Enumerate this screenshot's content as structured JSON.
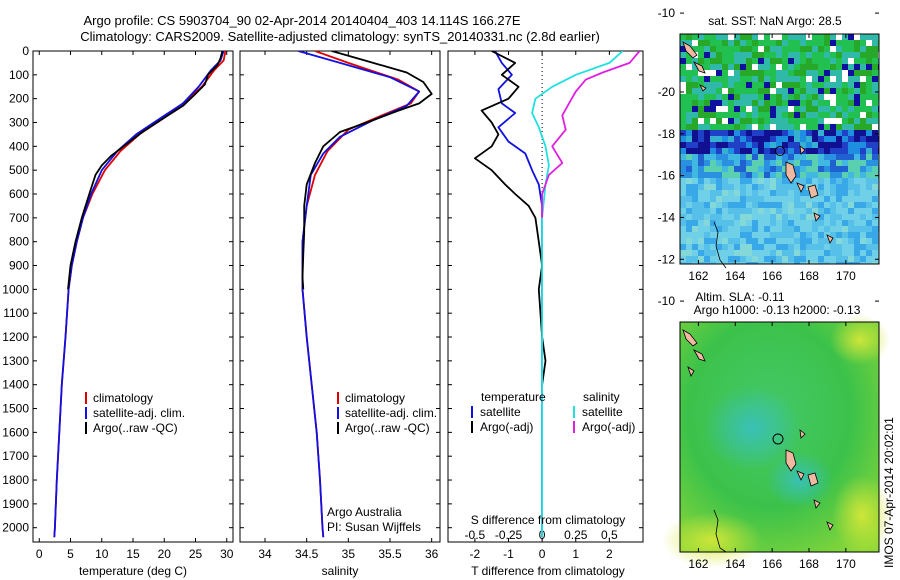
{
  "title_line1": "Argo profile: CS 5903704_90 02-Apr-2014 20140404_403 14.114S 166.27E",
  "title_line2": "Climatology: CARS2009. Satellite-adjusted climatology: synTS_20140331.nc (2.8d earlier)",
  "credits": {
    "line1": "Argo Australia",
    "line2": "PI: Susan Wijffels"
  },
  "timestamp": "IMOS 07-Apr-2014 20:02:01",
  "colors": {
    "clim": "#e00000",
    "sat": "#1010e0",
    "argo": "#000000",
    "sal_sat": "#22e0e0",
    "sal_argo": "#e020e0"
  },
  "chart_data": [
    {
      "type": "line",
      "name": "temperature-profile",
      "xlabel": "temperature (deg C)",
      "ylabel": "depth",
      "xlim": [
        -1,
        31
      ],
      "ylim": [
        2060,
        0
      ],
      "xticks": [
        0,
        5,
        10,
        15,
        20,
        25,
        30
      ],
      "yticks": [
        0,
        100,
        200,
        300,
        400,
        500,
        600,
        700,
        800,
        900,
        1000,
        1100,
        1200,
        1300,
        1400,
        1500,
        1600,
        1700,
        1800,
        1900,
        2000
      ],
      "legend": [
        "climatology",
        "satellite-adj. clim.",
        "Argo(..raw -QC)"
      ],
      "series": [
        {
          "name": "climatology",
          "color": "#e00000",
          "points": [
            [
              29.8,
              0
            ],
            [
              29.5,
              40
            ],
            [
              28,
              80
            ],
            [
              26,
              150
            ],
            [
              23,
              220
            ],
            [
              20,
              280
            ],
            [
              16,
              350
            ],
            [
              13,
              420
            ],
            [
              10.5,
              500
            ],
            [
              8.5,
              600
            ],
            [
              7,
              700
            ],
            [
              6,
              800
            ],
            [
              5.2,
              900
            ],
            [
              4.7,
              1000
            ],
            [
              4.2,
              1200
            ],
            [
              3.6,
              1400
            ],
            [
              3.2,
              1600
            ],
            [
              2.8,
              1800
            ],
            [
              2.5,
              2000
            ],
            [
              2.4,
              2040
            ]
          ]
        },
        {
          "name": "satellite-adj. clim.",
          "color": "#1010e0",
          "points": [
            [
              29.5,
              0
            ],
            [
              29,
              40
            ],
            [
              27.5,
              80
            ],
            [
              25.5,
              150
            ],
            [
              23,
              220
            ],
            [
              19.5,
              280
            ],
            [
              15.5,
              350
            ],
            [
              12.5,
              420
            ],
            [
              10,
              500
            ],
            [
              8.3,
              600
            ],
            [
              7,
              700
            ],
            [
              6,
              800
            ],
            [
              5.2,
              900
            ],
            [
              4.7,
              1000
            ],
            [
              4.2,
              1200
            ],
            [
              3.6,
              1400
            ],
            [
              3.2,
              1600
            ],
            [
              2.8,
              1800
            ],
            [
              2.5,
              2000
            ],
            [
              2.4,
              2040
            ]
          ]
        },
        {
          "name": "Argo(..raw -QC)",
          "color": "#000000",
          "points": [
            [
              29.3,
              0
            ],
            [
              29,
              30
            ],
            [
              28.5,
              60
            ],
            [
              27,
              100
            ],
            [
              26.5,
              140
            ],
            [
              25,
              180
            ],
            [
              23,
              230
            ],
            [
              20,
              280
            ],
            [
              16.5,
              340
            ],
            [
              13.5,
              400
            ],
            [
              11.5,
              440
            ],
            [
              10,
              480
            ],
            [
              9,
              520
            ],
            [
              8,
              600
            ],
            [
              6.8,
              700
            ],
            [
              5.8,
              800
            ],
            [
              5,
              900
            ],
            [
              4.6,
              1000
            ]
          ]
        }
      ]
    },
    {
      "type": "line",
      "name": "salinity-profile",
      "xlabel": "salinity",
      "xlim": [
        33.7,
        36.1
      ],
      "ylim": [
        2060,
        0
      ],
      "xticks": [
        34,
        34.5,
        35,
        35.5,
        36
      ],
      "legend": [
        "climatology",
        "satellite-adj. clim.",
        "Argo(..raw -QC)"
      ],
      "series": [
        {
          "name": "climatology",
          "color": "#e00000",
          "points": [
            [
              34.6,
              0
            ],
            [
              35,
              50
            ],
            [
              35.6,
              120
            ],
            [
              35.85,
              170
            ],
            [
              35.75,
              220
            ],
            [
              35.4,
              270
            ],
            [
              35,
              330
            ],
            [
              34.75,
              420
            ],
            [
              34.6,
              520
            ],
            [
              34.5,
              650
            ],
            [
              34.45,
              800
            ],
            [
              34.45,
              1000
            ],
            [
              34.5,
              1200
            ],
            [
              34.56,
              1400
            ],
            [
              34.62,
              1600
            ],
            [
              34.66,
              1800
            ],
            [
              34.69,
              2000
            ],
            [
              34.7,
              2040
            ]
          ]
        },
        {
          "name": "satellite-adj. clim.",
          "color": "#1010e0",
          "points": [
            [
              34.4,
              0
            ],
            [
              34.9,
              50
            ],
            [
              35.5,
              110
            ],
            [
              35.85,
              170
            ],
            [
              35.7,
              230
            ],
            [
              35.3,
              290
            ],
            [
              34.9,
              360
            ],
            [
              34.7,
              430
            ],
            [
              34.55,
              520
            ],
            [
              34.5,
              650
            ],
            [
              34.45,
              800
            ],
            [
              34.45,
              1000
            ],
            [
              34.5,
              1200
            ],
            [
              34.56,
              1400
            ],
            [
              34.62,
              1600
            ],
            [
              34.66,
              1800
            ],
            [
              34.69,
              2000
            ],
            [
              34.7,
              2040
            ]
          ]
        },
        {
          "name": "Argo(..raw -QC)",
          "color": "#000000",
          "points": [
            [
              34.8,
              0
            ],
            [
              35.2,
              40
            ],
            [
              35.7,
              90
            ],
            [
              35.9,
              130
            ],
            [
              36,
              180
            ],
            [
              35.85,
              220
            ],
            [
              35.6,
              250
            ],
            [
              35.3,
              290
            ],
            [
              34.9,
              340
            ],
            [
              34.7,
              400
            ],
            [
              34.6,
              470
            ],
            [
              34.5,
              560
            ],
            [
              34.47,
              650
            ],
            [
              34.47,
              760
            ],
            [
              34.46,
              850
            ],
            [
              34.45,
              950
            ],
            [
              34.46,
              1000
            ]
          ]
        }
      ]
    },
    {
      "type": "line",
      "name": "difference-profile",
      "xlabel_top": "S difference from climatology",
      "xlabel": "T difference from climatology",
      "xticks_T": [
        -2,
        -1,
        0,
        1,
        2
      ],
      "xticks_S": [
        "-0.5",
        "-0.25",
        "0",
        "0.25",
        "0.5"
      ],
      "xlim": [
        -2.8,
        3.0
      ],
      "ylim": [
        2060,
        0
      ],
      "legend_left_title": "temperature",
      "legend_right_title": "salinity",
      "legend": [
        "satellite",
        "Argo(-adj)",
        "satellite",
        "Argo(-adj)"
      ],
      "series": [
        {
          "name": "temperature satellite",
          "color": "#1010e0",
          "points": [
            [
              -1.4,
              0
            ],
            [
              -1.2,
              50
            ],
            [
              -0.9,
              100
            ],
            [
              -1.3,
              160
            ],
            [
              -1.2,
              220
            ],
            [
              -0.8,
              260
            ],
            [
              -1.3,
              320
            ],
            [
              -1.0,
              380
            ],
            [
              -0.5,
              430
            ],
            [
              -0.3,
              500
            ],
            [
              -0.1,
              560
            ],
            [
              0,
              650
            ],
            [
              0,
              800
            ],
            [
              0,
              1000
            ],
            [
              0,
              1400
            ],
            [
              0,
              1800
            ],
            [
              0,
              2040
            ]
          ]
        },
        {
          "name": "temperature Argo(-adj)",
          "color": "#000000",
          "points": [
            [
              -1.5,
              0
            ],
            [
              -0.8,
              50
            ],
            [
              -1.2,
              100
            ],
            [
              -0.7,
              150
            ],
            [
              -1.0,
              200
            ],
            [
              -1.8,
              250
            ],
            [
              -1.5,
              300
            ],
            [
              -1.3,
              350
            ],
            [
              -1.5,
              400
            ],
            [
              -2.0,
              450
            ],
            [
              -1.5,
              500
            ],
            [
              -1.1,
              560
            ],
            [
              -0.8,
              600
            ],
            [
              -0.4,
              650
            ],
            [
              -0.2,
              700
            ],
            [
              -0.1,
              800
            ],
            [
              0,
              900
            ],
            [
              -0.1,
              1000
            ],
            [
              0,
              1200
            ],
            [
              0.1,
              1300
            ],
            [
              0,
              1400
            ]
          ]
        },
        {
          "name": "salinity satellite",
          "color": "#22e0e0",
          "points": [
            [
              2.4,
              0
            ],
            [
              2.0,
              50
            ],
            [
              1.0,
              100
            ],
            [
              0.3,
              150
            ],
            [
              -0.2,
              200
            ],
            [
              -0.3,
              260
            ],
            [
              -0.1,
              320
            ],
            [
              0.1,
              400
            ],
            [
              0.2,
              480
            ],
            [
              0.1,
              560
            ],
            [
              0,
              700
            ],
            [
              0,
              1000
            ],
            [
              0,
              1400
            ],
            [
              0,
              2040
            ]
          ]
        },
        {
          "name": "salinity Argo(-adj)",
          "color": "#e020e0",
          "points": [
            [
              2.9,
              0
            ],
            [
              2.6,
              50
            ],
            [
              1.8,
              90
            ],
            [
              1.3,
              120
            ],
            [
              1.0,
              170
            ],
            [
              0.8,
              220
            ],
            [
              0.6,
              270
            ],
            [
              0.7,
              330
            ],
            [
              0.3,
              400
            ],
            [
              0.6,
              470
            ],
            [
              0.2,
              520
            ],
            [
              0,
              600
            ],
            [
              0,
              700
            ]
          ]
        }
      ]
    }
  ],
  "maps": [
    {
      "name": "sst-map",
      "title": "sat. SST: NaN Argo: 28.5",
      "xticks": [
        "162",
        "164",
        "166",
        "168",
        "170"
      ],
      "yticks": [
        "-10",
        "-12",
        "-14",
        "-16",
        "-18",
        "-20"
      ]
    },
    {
      "name": "sla-map",
      "title_line1": "Altim. SLA: -0.11",
      "title_line2": "Argo h1000: -0.13 h2000: -0.13",
      "xticks": [
        "162",
        "164",
        "166",
        "168",
        "170"
      ],
      "yticks": [
        "-10",
        "-12",
        "-14",
        "-16",
        "-18",
        "-20"
      ]
    }
  ]
}
